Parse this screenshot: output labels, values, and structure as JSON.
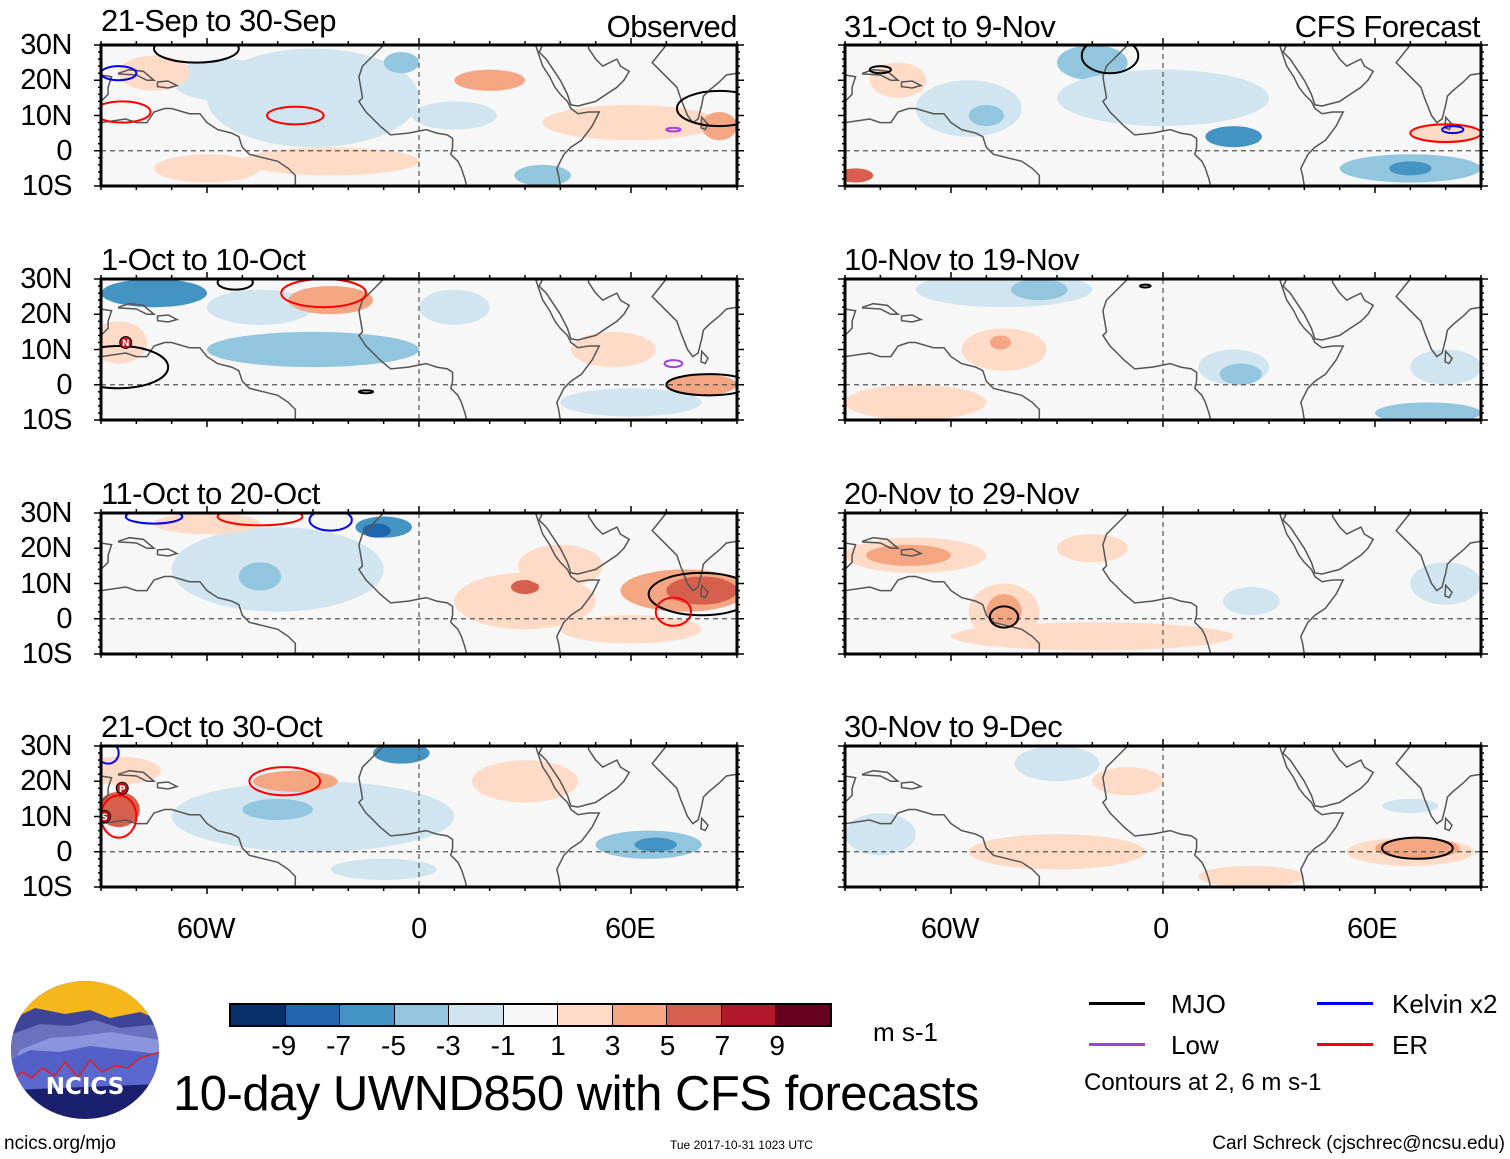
{
  "header": {
    "left_column_label": "Observed",
    "right_column_label": "CFS Forecast"
  },
  "panels": [
    {
      "id": "obs-1",
      "column": "observed",
      "title": "21-Sep to 30-Sep"
    },
    {
      "id": "obs-2",
      "column": "observed",
      "title": "1-Oct to 10-Oct"
    },
    {
      "id": "obs-3",
      "column": "observed",
      "title": "11-Oct to 20-Oct"
    },
    {
      "id": "obs-4",
      "column": "observed",
      "title": "21-Oct to 30-Oct"
    },
    {
      "id": "fcst-1",
      "column": "forecast",
      "title": "31-Oct to 9-Nov"
    },
    {
      "id": "fcst-2",
      "column": "forecast",
      "title": "10-Nov to 19-Nov"
    },
    {
      "id": "fcst-3",
      "column": "forecast",
      "title": "20-Nov to 29-Nov"
    },
    {
      "id": "fcst-4",
      "column": "forecast",
      "title": "30-Nov to 9-Dec"
    }
  ],
  "axes": {
    "lat_labels": [
      "30N",
      "20N",
      "10N",
      "0",
      "10S"
    ],
    "lon_labels": [
      "60W",
      "0",
      "60E"
    ],
    "lat_range": [
      -10,
      30
    ],
    "lon_range": [
      -90,
      90
    ]
  },
  "colorbar": {
    "unit": "m s-1",
    "tick_labels": [
      "-9",
      "-7",
      "-5",
      "-3",
      "-1",
      "1",
      "3",
      "5",
      "7",
      "9"
    ],
    "colors": [
      "#08306b",
      "#2166ac",
      "#4393c3",
      "#92c5de",
      "#d1e5f0",
      "#f7f7f7",
      "#fddbc7",
      "#f4a582",
      "#d6604d",
      "#b2182b",
      "#67001f"
    ]
  },
  "legend": {
    "items": [
      {
        "label": "MJO",
        "color": "#000000"
      },
      {
        "label": "Kelvin x2",
        "color": "#0000ff"
      },
      {
        "label": "Low",
        "color": "#a040e0"
      },
      {
        "label": "ER",
        "color": "#ff0000"
      }
    ],
    "note": "Contours at 2, 6 m s-1"
  },
  "title": "10-day UWND850 with CFS forecasts",
  "footer": {
    "url": "ncics.org/mjo",
    "timestamp": "Tue 2017-10-31 1023 UTC",
    "credit": "Carl Schreck (cjschrec@ncsu.edu)"
  },
  "logo": {
    "text": "NCICS"
  },
  "storm_markers": [
    {
      "panel": "obs-2",
      "letter": "N"
    },
    {
      "panel": "obs-4",
      "letter": "P"
    },
    {
      "panel": "obs-4",
      "letter": "S"
    }
  ]
}
